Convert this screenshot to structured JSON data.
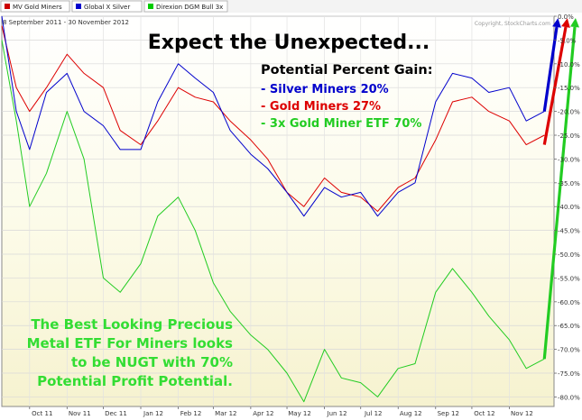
{
  "legend": [
    {
      "label": "MV Gold Miners",
      "color": "#cc0000"
    },
    {
      "label": "Global X Silver",
      "color": "#0000cc"
    },
    {
      "label": "Direxion DGM Bull 3x",
      "color": "#00cc00"
    }
  ],
  "date_range": "8 September 2011 - 30 November 2012",
  "copyright": "Copyright, StockCharts.com",
  "headline": "Expect the Unexpected...",
  "gain_box": {
    "title": "Potential Percent Gain:",
    "lines": [
      {
        "text": "- Silver Miners 20%",
        "color": "#0000cc"
      },
      {
        "text": "- Gold Miners 27%",
        "color": "#cc0000"
      },
      {
        "text": "- 3x Gold Miner ETF  70%",
        "color": "#22cc22"
      }
    ]
  },
  "note_lines": [
    "The Best Looking Precious",
    "Metal ETF For Miners looks",
    "to be NUGT with 70%",
    "Potential Profit Potential."
  ],
  "colors": {
    "gold": "#dd0000",
    "silver": "#0000cc",
    "gold3x": "#22cc22",
    "note": "#33dd33"
  },
  "chart_data": {
    "type": "line",
    "xlabel": "",
    "ylabel": "",
    "x_ticks": [
      "Oct 11",
      "Nov 11",
      "Dec 11",
      "Jan 12",
      "Feb 12",
      "Mar 12",
      "Apr 12",
      "May 12",
      "Jun 12",
      "Jul 12",
      "Aug 12",
      "Sep 12",
      "Oct 12",
      "Nov 12"
    ],
    "y_ticks": [
      "0.0%",
      "-5.0%",
      "-10.0%",
      "-15.0%",
      "-20.0%",
      "-25.0%",
      "-30.0%",
      "-35.0%",
      "-40.0%",
      "-45.0%",
      "-50.0%",
      "-55.0%",
      "-60.0%",
      "-65.0%",
      "-70.0%",
      "-75.0%",
      "-80.0%"
    ],
    "ylim": [
      -82,
      0
    ],
    "x": [
      "2011-09-08",
      "2011-09-20",
      "2011-10-01",
      "2011-10-15",
      "2011-11-01",
      "2011-11-15",
      "2011-12-01",
      "2011-12-15",
      "2012-01-01",
      "2012-01-15",
      "2012-02-01",
      "2012-02-15",
      "2012-03-01",
      "2012-03-15",
      "2012-04-01",
      "2012-04-15",
      "2012-05-01",
      "2012-05-15",
      "2012-06-01",
      "2012-06-15",
      "2012-07-01",
      "2012-07-15",
      "2012-08-01",
      "2012-08-15",
      "2012-09-01",
      "2012-09-15",
      "2012-10-01",
      "2012-10-15",
      "2012-11-01",
      "2012-11-15",
      "2012-11-30"
    ],
    "series": [
      {
        "name": "MV Gold Miners",
        "values": [
          -2,
          -15,
          -20,
          -15,
          -8,
          -12,
          -15,
          -24,
          -27,
          -22,
          -15,
          -17,
          -18,
          -22,
          -26,
          -30,
          -37,
          -40,
          -34,
          -37,
          -38,
          -41,
          -36,
          -34,
          -26,
          -18,
          -17,
          -20,
          -22,
          -27,
          -25
        ]
      },
      {
        "name": "Global X Silver",
        "values": [
          0,
          -20,
          -28,
          -16,
          -12,
          -20,
          -23,
          -28,
          -28,
          -18,
          -10,
          -13,
          -16,
          -24,
          -29,
          -32,
          -37,
          -42,
          -36,
          -38,
          -37,
          -42,
          -37,
          -35,
          -18,
          -12,
          -13,
          -16,
          -15,
          -22,
          -20
        ]
      },
      {
        "name": "Direxion DGM Bull 3x",
        "values": [
          -5,
          -22,
          -40,
          -33,
          -20,
          -30,
          -55,
          -58,
          -52,
          -42,
          -38,
          -45,
          -56,
          -62,
          -67,
          -70,
          -75,
          -81,
          -70,
          -76,
          -77,
          -80,
          -74,
          -73,
          -58,
          -53,
          -58,
          -63,
          -68,
          -74,
          -72
        ]
      }
    ],
    "arrows": [
      {
        "name": "Global X Silver",
        "from": -20,
        "to": 0
      },
      {
        "name": "MV Gold Miners",
        "from": -27,
        "to": 0
      },
      {
        "name": "Direxion DGM Bull 3x",
        "from": -72,
        "to": 0
      }
    ]
  }
}
